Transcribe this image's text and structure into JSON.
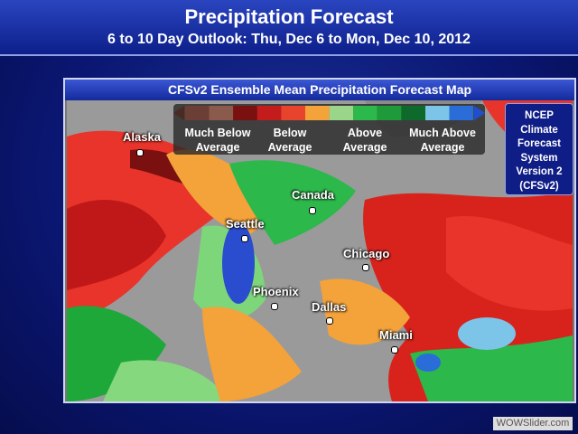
{
  "header": {
    "title": "Precipitation Forecast",
    "subtitle": "6 to 10 Day Outlook: Thu, Dec 6 to Mon, Dec 10, 2012"
  },
  "panel": {
    "title": "CFSv2 Ensemble Mean Precipitation Forecast Map"
  },
  "legend": {
    "labels": [
      "Much Below Average",
      "Below Average",
      "Above Average",
      "Much Above Average"
    ]
  },
  "cities": [
    "Alaska",
    "Canada",
    "Seattle",
    "Chicago",
    "Phoenix",
    "Dallas",
    "Miami"
  ],
  "side_box": {
    "lines": [
      "NCEP",
      "Climate",
      "Forecast",
      "System",
      "Version 2",
      "(CFSv2)"
    ]
  },
  "watermark": "WOWSlider.com"
}
